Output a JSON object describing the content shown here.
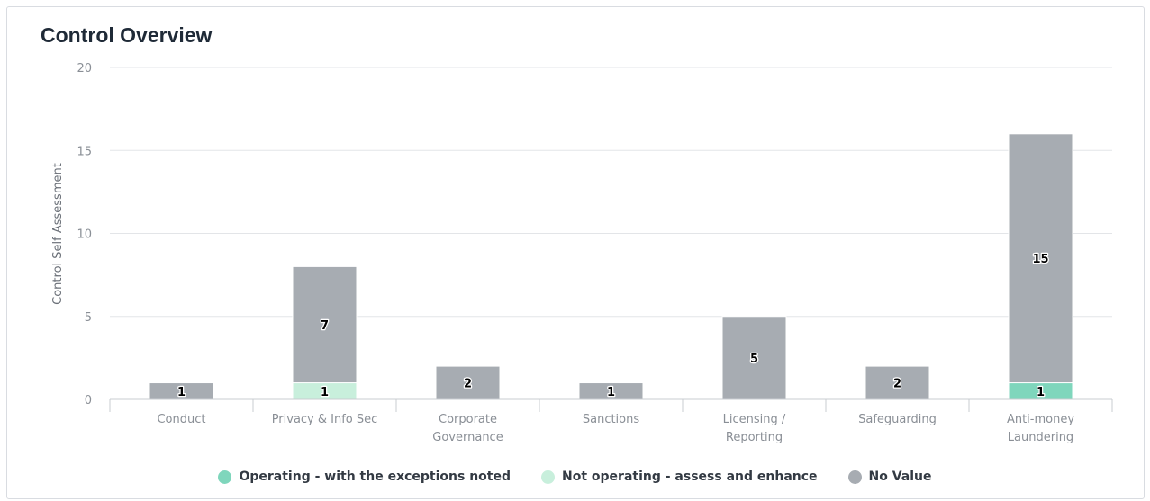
{
  "chart_data": {
    "type": "bar",
    "stacked": true,
    "title": "Control Overview",
    "ylabel": "Control Self Assessment",
    "xlabel": "",
    "ylim": [
      0,
      20
    ],
    "yticks": [
      0,
      5,
      10,
      15,
      20
    ],
    "grid": true,
    "legend_position": "bottom",
    "categories": [
      [
        "Conduct"
      ],
      [
        "Privacy & Info Sec"
      ],
      [
        "Corporate",
        "Governance"
      ],
      [
        "Sanctions"
      ],
      [
        "Licensing /",
        "Reporting"
      ],
      [
        "Safeguarding"
      ],
      [
        "Anti-money",
        "Laundering"
      ]
    ],
    "series": [
      {
        "name": "Operating - with the exceptions noted",
        "color": "#7fd6bc",
        "values": [
          0,
          0,
          0,
          0,
          0,
          0,
          1
        ]
      },
      {
        "name": "Not operating - assess and enhance",
        "color": "#c8efdc",
        "values": [
          0,
          1,
          0,
          0,
          0,
          0,
          0
        ]
      },
      {
        "name": "No Value",
        "color": "#a7acb2",
        "values": [
          1,
          7,
          2,
          1,
          5,
          2,
          15
        ]
      }
    ]
  }
}
